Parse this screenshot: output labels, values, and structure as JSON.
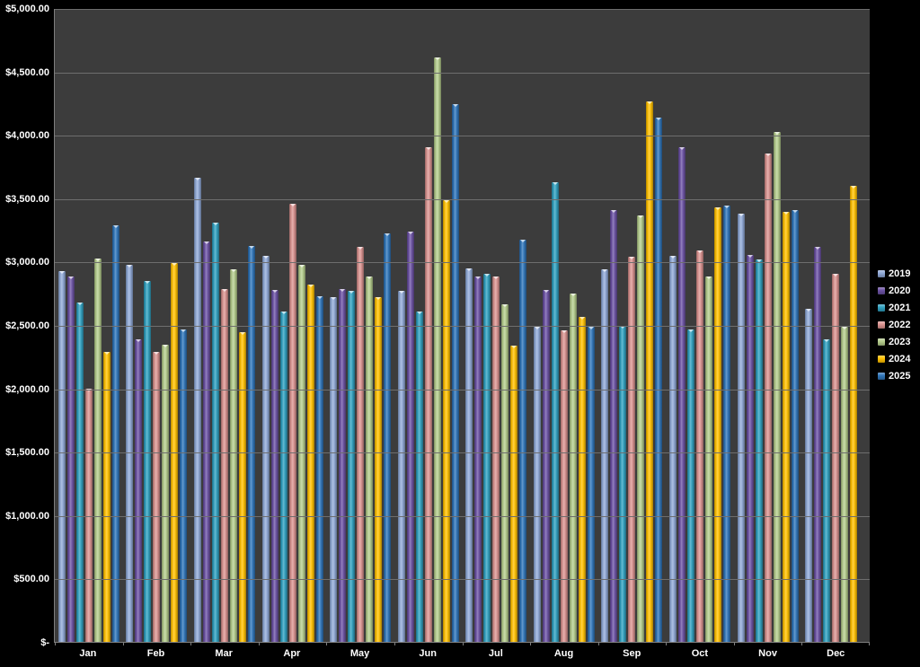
{
  "chart_data": {
    "type": "bar",
    "title": "",
    "categories": [
      "Jan",
      "Feb",
      "Mar",
      "Apr",
      "May",
      "Jun",
      "Jul",
      "Aug",
      "Sep",
      "Oct",
      "Nov",
      "Dec"
    ],
    "series": [
      {
        "name": "2019",
        "color": "#8FA8D6",
        "values": [
          2930,
          2980,
          3670,
          3050,
          2720,
          2770,
          2950,
          2490,
          2940,
          3050,
          3380,
          2630
        ]
      },
      {
        "name": "2020",
        "color": "#6B51A3",
        "values": [
          2890,
          2390,
          3160,
          2780,
          2790,
          3240,
          2890,
          2780,
          3410,
          3910,
          3060,
          3120
        ]
      },
      {
        "name": "2021",
        "color": "#2F9FBE",
        "values": [
          2680,
          2850,
          3310,
          2610,
          2770,
          2610,
          2910,
          3630,
          2500,
          2470,
          3020,
          2390
        ]
      },
      {
        "name": "2022",
        "color": "#D9928F",
        "values": [
          2000,
          2290,
          2790,
          3460,
          3120,
          3910,
          2890,
          2460,
          3040,
          3090,
          3860,
          2910
        ]
      },
      {
        "name": "2023",
        "color": "#B3CB8B",
        "values": [
          3030,
          2350,
          2940,
          2980,
          2890,
          4620,
          2670,
          2750,
          3370,
          2890,
          4030,
          2490
        ]
      },
      {
        "name": "2024",
        "color": "#FFC000",
        "values": [
          2290,
          2990,
          2450,
          2820,
          2720,
          3490,
          2340,
          2570,
          4270,
          3430,
          3400,
          3600
        ]
      },
      {
        "name": "2025",
        "color": "#2E74B8",
        "values": [
          3290,
          2470,
          3130,
          2730,
          3230,
          4250,
          3180,
          2490,
          4140,
          3450,
          3410,
          null
        ]
      }
    ],
    "ylim": [
      0,
      5000
    ],
    "ytick_step": 500,
    "ytick_labels": [
      "$-",
      "$500.00",
      "$1,000.00",
      "$1,500.00",
      "$2,000.00",
      "$2,500.00",
      "$3,000.00",
      "$3,500.00",
      "$4,000.00",
      "$4,500.00",
      "$5,000.00"
    ],
    "grid": true,
    "legend_position": "right",
    "legend_labels": [
      "2019",
      "2020",
      "2021",
      "2022",
      "2023",
      "2024",
      "2025"
    ]
  },
  "colors": {
    "page_background": "#000000",
    "plot_background": "#3C3C3C",
    "gridline": "#6E6E6E",
    "axis_line": "#7F7F7F",
    "label_text": "#FFFFFF"
  }
}
